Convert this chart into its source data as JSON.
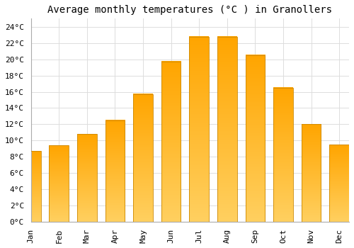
{
  "title": "Average monthly temperatures (°C ) in Granollers",
  "months": [
    "Jan",
    "Feb",
    "Mar",
    "Apr",
    "May",
    "Jun",
    "Jul",
    "Aug",
    "Sep",
    "Oct",
    "Nov",
    "Dec"
  ],
  "values": [
    8.7,
    9.4,
    10.8,
    12.5,
    15.7,
    19.7,
    22.8,
    22.8,
    20.5,
    16.5,
    12.0,
    9.5
  ],
  "bar_color_top": "#FFA500",
  "bar_color_bottom": "#FFD966",
  "bar_edge_color": "#CC8800",
  "background_color": "#FFFFFF",
  "grid_color": "#DDDDDD",
  "ylim": [
    0,
    25
  ],
  "yticks": [
    0,
    2,
    4,
    6,
    8,
    10,
    12,
    14,
    16,
    18,
    20,
    22,
    24
  ],
  "title_fontsize": 10,
  "tick_fontsize": 8,
  "font_family": "monospace"
}
